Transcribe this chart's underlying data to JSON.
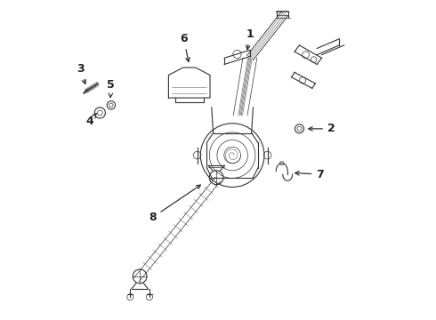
{
  "bg_color": "#ffffff",
  "text_color": "#222222",
  "line_color": "#333333",
  "font_size_label": 9
}
